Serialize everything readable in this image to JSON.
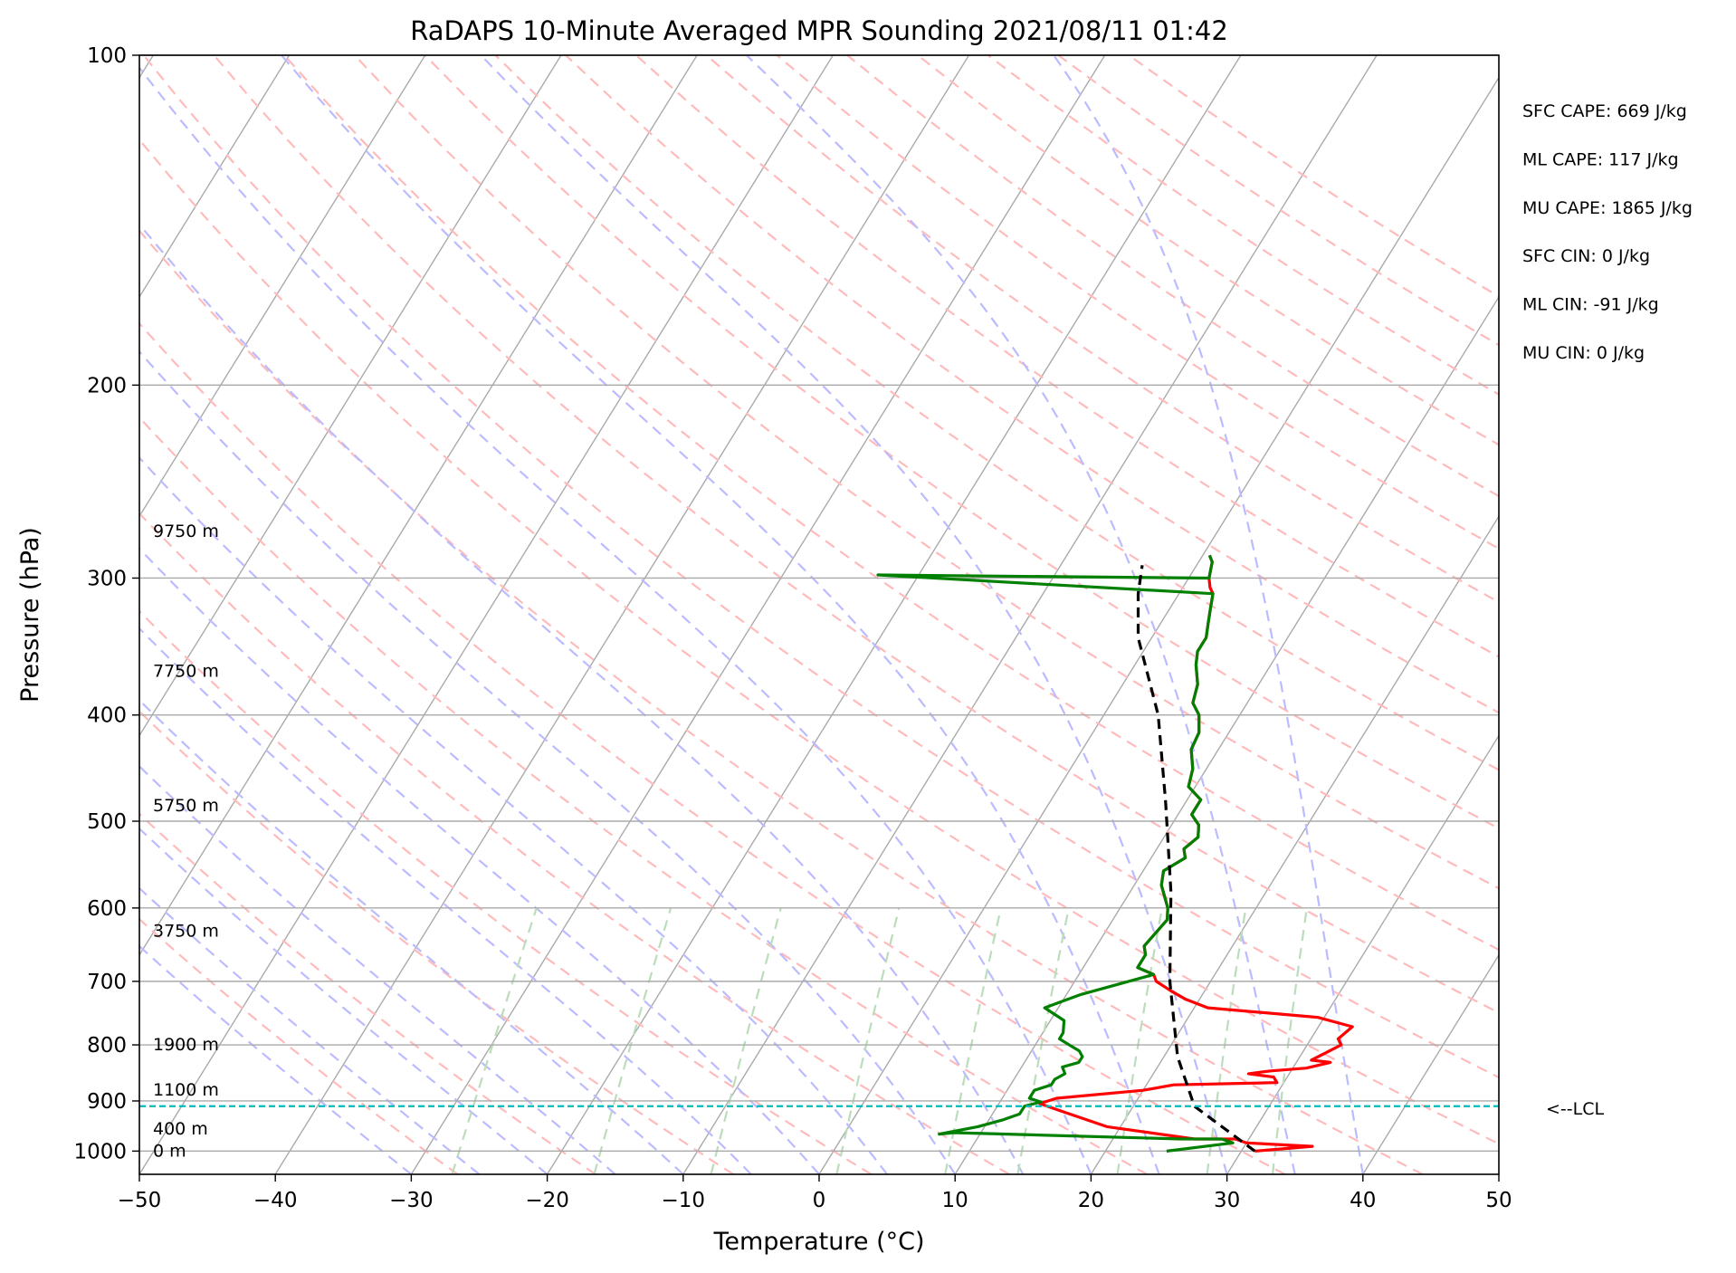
{
  "chart_data": {
    "type": "line",
    "subtype": "skew-t log-p sounding",
    "title": "RaDAPS 10-Minute Averaged MPR Sounding 2021/08/11 01:42",
    "xlabel": "Temperature (°C)",
    "ylabel": "Pressure (hPa)",
    "xlim": [
      -50,
      50
    ],
    "ylim": [
      1050,
      100
    ],
    "y_scale": "log",
    "x_ticks": [
      -50,
      -40,
      -30,
      -20,
      -10,
      0,
      10,
      20,
      30,
      40,
      50
    ],
    "x_tick_labels": [
      "−50",
      "−40",
      "−30",
      "−20",
      "−10",
      "0",
      "10",
      "20",
      "30",
      "40",
      "50"
    ],
    "y_ticks": [
      100,
      200,
      300,
      400,
      500,
      600,
      700,
      800,
      900,
      1000
    ],
    "y_tick_labels": [
      "100",
      "200",
      "300",
      "400",
      "500",
      "600",
      "700",
      "800",
      "900",
      "1000"
    ],
    "grid": true,
    "background_lines": {
      "isotherm_color": "#aaaaaa",
      "dry_adiabat_color": "#ffbbbb",
      "moist_adiabat_color": "#bbbbff",
      "mixing_ratio_color": "#bbddbb"
    },
    "series": [
      {
        "color": "#ff0000",
        "points": [
          [
            31,
            1000
          ],
          [
            35,
            990
          ],
          [
            30,
            983
          ],
          [
            29,
            975
          ],
          [
            26,
            975
          ],
          [
            19,
            950
          ],
          [
            15,
            920
          ],
          [
            13,
            905
          ],
          [
            14,
            895
          ],
          [
            20,
            880
          ],
          [
            22,
            870
          ],
          [
            29.5,
            866
          ],
          [
            29,
            856
          ],
          [
            27,
            850
          ],
          [
            28.5,
            845
          ],
          [
            31,
            840
          ],
          [
            32.5,
            830
          ],
          [
            31,
            826
          ],
          [
            32.5,
            800
          ],
          [
            32,
            790
          ],
          [
            32.5,
            770
          ],
          [
            29.5,
            755
          ],
          [
            21,
            740
          ],
          [
            19,
            727
          ],
          [
            17.5,
            714
          ],
          [
            16,
            700
          ],
          [
            15.5,
            690
          ],
          [
            14,
            680
          ],
          [
            14,
            662
          ],
          [
            13.5,
            650
          ],
          [
            14,
            615
          ],
          [
            13.5,
            600
          ],
          [
            12,
            572
          ],
          [
            11.5,
            555
          ],
          [
            12.5,
            540
          ],
          [
            12,
            530
          ],
          [
            12.5,
            517
          ],
          [
            12,
            504
          ],
          [
            11,
            493
          ],
          [
            11,
            478
          ],
          [
            9.5,
            465
          ],
          [
            9,
            448
          ],
          [
            8,
            430
          ],
          [
            7.8,
            415
          ],
          [
            7,
            400
          ],
          [
            6,
            390
          ],
          [
            5.5,
            375
          ],
          [
            4.5,
            360
          ],
          [
            4,
            350
          ],
          [
            4,
            340
          ],
          [
            3.5,
            330
          ],
          [
            3,
            320
          ],
          [
            2.5,
            310
          ],
          [
            2,
            306
          ],
          [
            1.5,
            300
          ],
          [
            1,
            290
          ],
          [
            0.5,
            286
          ]
        ]
      },
      {
        "color": "#008000",
        "points": [
          [
            24.5,
            1000
          ],
          [
            29,
            983
          ],
          [
            28,
            975
          ],
          [
            25,
            975
          ],
          [
            8,
            962
          ],
          [
            7,
            965
          ],
          [
            9.5,
            950
          ],
          [
            11,
            937
          ],
          [
            12,
            925
          ],
          [
            12,
            910
          ],
          [
            13,
            902
          ],
          [
            12,
            895
          ],
          [
            12,
            880
          ],
          [
            13,
            870
          ],
          [
            13,
            860
          ],
          [
            13.5,
            850
          ],
          [
            13,
            838
          ],
          [
            14,
            830
          ],
          [
            14,
            820
          ],
          [
            13.5,
            810
          ],
          [
            12.5,
            800
          ],
          [
            11.5,
            790
          ],
          [
            11.5,
            780
          ],
          [
            11,
            760
          ],
          [
            10,
            750
          ],
          [
            9,
            740
          ],
          [
            10,
            730
          ],
          [
            11,
            720
          ],
          [
            15.5,
            690
          ],
          [
            14,
            680
          ],
          [
            14,
            662
          ],
          [
            13.5,
            650
          ],
          [
            14,
            615
          ],
          [
            13.5,
            600
          ],
          [
            12,
            572
          ],
          [
            11.5,
            555
          ],
          [
            12.5,
            540
          ],
          [
            12,
            530
          ],
          [
            12.5,
            517
          ],
          [
            12,
            504
          ],
          [
            11,
            493
          ],
          [
            11,
            478
          ],
          [
            9.5,
            465
          ],
          [
            9,
            448
          ],
          [
            8,
            430
          ],
          [
            7.8,
            415
          ],
          [
            7,
            400
          ],
          [
            6,
            390
          ],
          [
            5.5,
            375
          ],
          [
            4.5,
            360
          ],
          [
            4,
            350
          ],
          [
            4,
            340
          ],
          [
            3.5,
            330
          ],
          [
            3,
            320
          ],
          [
            2.5,
            310
          ],
          [
            -23,
            298
          ],
          [
            1.5,
            300
          ],
          [
            1,
            290
          ],
          [
            0.5,
            286
          ]
        ]
      },
      {
        "color": "#000000",
        "style": "dashed",
        "points": [
          [
            31,
            1000
          ],
          [
            24.5,
            910
          ],
          [
            21,
            820
          ],
          [
            17,
            700
          ],
          [
            13,
            580
          ],
          [
            8.5,
            480
          ],
          [
            4,
            400
          ],
          [
            -1,
            340
          ],
          [
            -3,
            310
          ],
          [
            -4,
            292
          ]
        ]
      }
    ],
    "lcl": {
      "pressure": 910,
      "label": "<--LCL",
      "color": "#00bbbb"
    },
    "height_labels": [
      {
        "text": "0 m",
        "pressure": 1000
      },
      {
        "text": "400 m",
        "pressure": 955
      },
      {
        "text": "1100 m",
        "pressure": 880
      },
      {
        "text": "1900 m",
        "pressure": 800
      },
      {
        "text": "3750 m",
        "pressure": 630
      },
      {
        "text": "5750 m",
        "pressure": 484
      },
      {
        "text": "7750 m",
        "pressure": 365
      },
      {
        "text": "9750 m",
        "pressure": 272
      }
    ],
    "indices": [
      "SFC CAPE: 669 J/kg",
      "ML CAPE: 117 J/kg",
      "MU CAPE: 1865 J/kg",
      "SFC CIN: 0 J/kg",
      "ML CIN: -91 J/kg",
      "MU CIN: 0 J/kg"
    ]
  }
}
